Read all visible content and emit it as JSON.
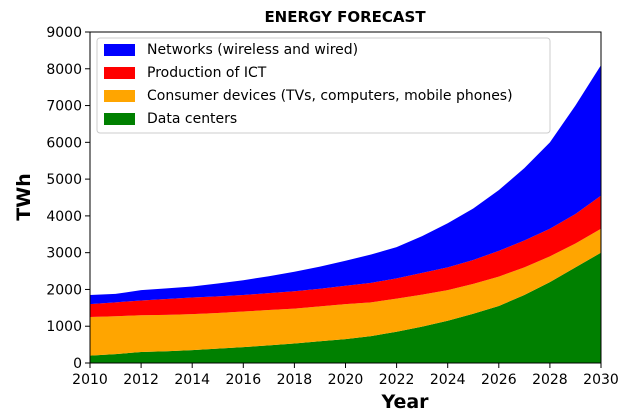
{
  "chart_data": {
    "type": "stacked_area",
    "title": "ENERGY FORECAST",
    "x_label": "Year",
    "y_label": "TWh",
    "x": [
      2010,
      2011,
      2012,
      2013,
      2014,
      2015,
      2016,
      2017,
      2018,
      2019,
      2020,
      2021,
      2022,
      2023,
      2024,
      2025,
      2026,
      2027,
      2028,
      2029,
      2030
    ],
    "series": [
      {
        "name": "Networks (wireless and wired)",
        "color": "#0000ff",
        "values": [
          250,
          230,
          280,
          290,
          300,
          350,
          400,
          460,
          530,
          600,
          680,
          770,
          850,
          1000,
          1200,
          1400,
          1650,
          1970,
          2350,
          2950,
          3550
        ]
      },
      {
        "name": "Production of ICT",
        "color": "#ff0000",
        "values": [
          350,
          380,
          400,
          430,
          450,
          450,
          450,
          460,
          470,
          480,
          500,
          530,
          550,
          590,
          620,
          650,
          700,
          730,
          750,
          800,
          900
        ]
      },
      {
        "name": "Consumer devices (TVs, computers, mobile phones)",
        "color": "#ffa500",
        "values": [
          1050,
          1030,
          1000,
          990,
          980,
          970,
          970,
          960,
          950,
          950,
          950,
          920,
          900,
          870,
          830,
          810,
          800,
          750,
          700,
          650,
          650
        ]
      },
      {
        "name": "Data centers",
        "color": "#008000",
        "values": [
          200,
          240,
          300,
          320,
          350,
          390,
          430,
          480,
          530,
          590,
          650,
          730,
          850,
          990,
          1150,
          1340,
          1550,
          1850,
          2200,
          2600,
          3000
        ]
      }
    ],
    "xlim": [
      2010,
      2030
    ],
    "ylim": [
      0,
      9000
    ],
    "xticks": [
      2010,
      2012,
      2014,
      2016,
      2018,
      2020,
      2022,
      2024,
      2026,
      2028,
      2030
    ],
    "yticks": [
      0,
      1000,
      2000,
      3000,
      4000,
      5000,
      6000,
      7000,
      8000,
      9000
    ],
    "legend": "upper left"
  }
}
